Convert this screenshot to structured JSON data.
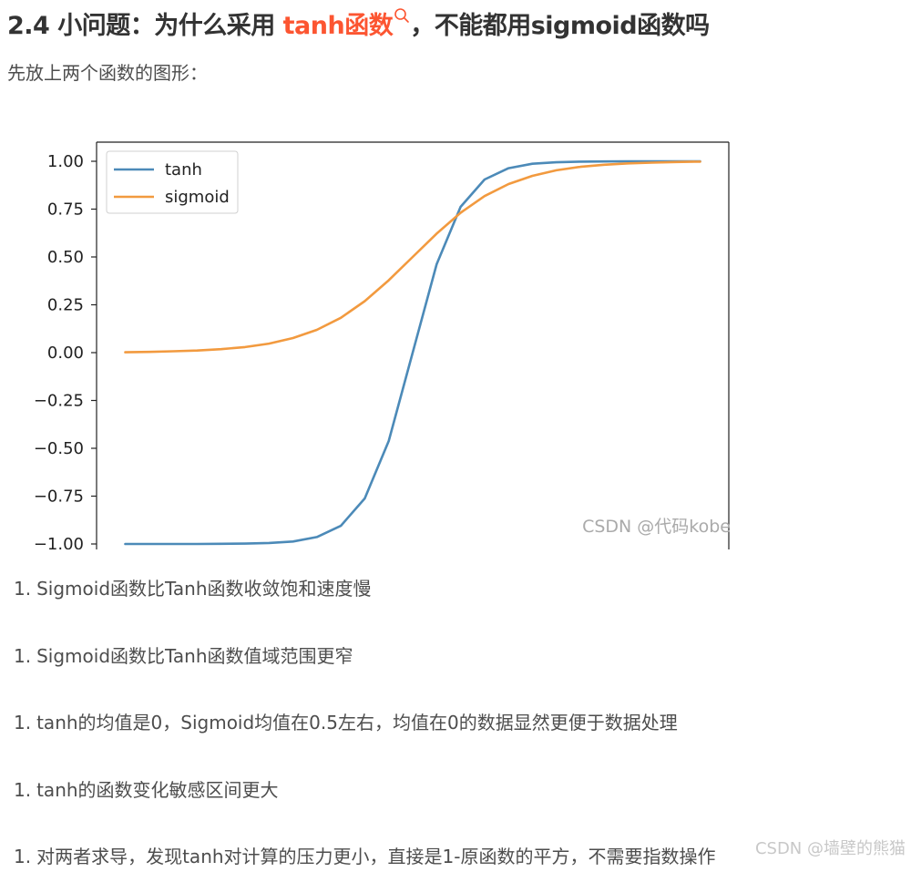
{
  "heading": {
    "prefix": "2.4 小问题：为什么采用 ",
    "keyword": "tanh函数",
    "suffix": "，不能都用sigmoid函数吗",
    "keyword_icon": "search-icon",
    "keyword_color": "#fc5531"
  },
  "intro": "先放上两个函数的图形：",
  "chart_data": {
    "type": "line",
    "x": [
      -6,
      -5.5,
      -5,
      -4.5,
      -4,
      -3.5,
      -3,
      -2.5,
      -2,
      -1.5,
      -1,
      -0.5,
      0,
      0.5,
      1,
      1.5,
      2,
      2.5,
      3,
      3.5,
      4,
      4.5,
      5,
      5.5,
      6
    ],
    "series": [
      {
        "name": "tanh",
        "color": "#4c8ab8",
        "values": [
          -1.0,
          -1.0,
          -1.0,
          -1.0,
          -0.999,
          -0.998,
          -0.995,
          -0.987,
          -0.964,
          -0.905,
          -0.762,
          -0.462,
          0.0,
          0.462,
          0.762,
          0.905,
          0.964,
          0.987,
          0.995,
          0.998,
          0.999,
          1.0,
          1.0,
          1.0,
          1.0
        ]
      },
      {
        "name": "sigmoid",
        "color": "#f29a3f",
        "values": [
          0.002,
          0.004,
          0.007,
          0.011,
          0.018,
          0.029,
          0.047,
          0.076,
          0.119,
          0.182,
          0.269,
          0.378,
          0.5,
          0.622,
          0.731,
          0.818,
          0.881,
          0.924,
          0.953,
          0.971,
          0.982,
          0.989,
          0.993,
          0.996,
          0.998
        ]
      }
    ],
    "yticks": [
      "1.00",
      "0.75",
      "0.50",
      "0.25",
      "0.00",
      "−0.25",
      "−0.50",
      "−0.75",
      "−1.00"
    ],
    "ylim": [
      -1.1,
      1.1
    ],
    "legend_position": "upper-left",
    "grid": false,
    "watermark": "CSDN @代码kobe"
  },
  "points": [
    {
      "num": "1.",
      "text": "Sigmoid函数比Tanh函数收敛饱和速度慢"
    },
    {
      "num": "1.",
      "text": "Sigmoid函数比Tanh函数值域范围更窄"
    },
    {
      "num": "1.",
      "text": "tanh的均值是0，Sigmoid均值在0.5左右，均值在0的数据显然更便于数据处理"
    },
    {
      "num": "1.",
      "text": "tanh的函数变化敏感区间更大"
    },
    {
      "num": "1.",
      "text": "对两者求导，发现tanh对计算的压力更小，直接是1-原函数的平方，不需要指数操作"
    }
  ],
  "footer_watermark": "CSDN @墙壁的熊猫"
}
